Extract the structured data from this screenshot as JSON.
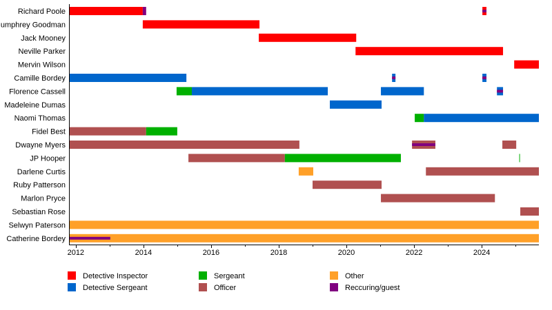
{
  "chart_data": {
    "type": "timeline",
    "title": "",
    "xlabel": "",
    "ylabel": "",
    "xlim": [
      2011.82,
      2025.69
    ],
    "x_ticks": [
      2012,
      2013,
      2014,
      2015,
      2016,
      2017,
      2018,
      2019,
      2020,
      2021,
      2022,
      2023,
      2024,
      2025
    ],
    "x_tick_labels": [
      "2012",
      "2014",
      "2016",
      "2018",
      "2020",
      "2022",
      "2024"
    ],
    "legend_placement": "bottom",
    "roles": {
      "di": {
        "label": "Detective Inspector",
        "color": "#ff0000"
      },
      "ds": {
        "label": "Detective Sergeant",
        "color": "#0066cc"
      },
      "sgt": {
        "label": "Sergeant",
        "color": "#00b000"
      },
      "officer": {
        "label": "Officer",
        "color": "#b05050"
      },
      "other": {
        "label": "Other",
        "color": "#ffa028"
      },
      "guest": {
        "label": "Reccuring/guest",
        "color": "#800080"
      }
    },
    "legend_order": [
      "di",
      "ds",
      "sgt",
      "officer",
      "other",
      "guest"
    ],
    "rows": [
      {
        "name": "Richard Poole",
        "segments": [
          [
            2011.82,
            2013.98,
            "di"
          ],
          [
            2013.98,
            2014.08,
            "guest"
          ],
          [
            2024.02,
            2024.14,
            "di"
          ],
          [
            2024.02,
            2024.14,
            "guest",
            "overlay"
          ]
        ]
      },
      {
        "name": "Humphrey Goodman",
        "segments": [
          [
            2013.98,
            2017.43,
            "di"
          ]
        ]
      },
      {
        "name": "Jack Mooney",
        "segments": [
          [
            2017.41,
            2020.29,
            "di"
          ]
        ]
      },
      {
        "name": "Neville Parker",
        "segments": [
          [
            2020.27,
            2024.63,
            "di"
          ]
        ]
      },
      {
        "name": "Mervin Wilson",
        "segments": [
          [
            2024.96,
            2025.69,
            "di"
          ]
        ]
      },
      {
        "name": "Camille Bordey",
        "segments": [
          [
            2011.82,
            2015.27,
            "ds"
          ],
          [
            2021.35,
            2021.45,
            "ds"
          ],
          [
            2021.35,
            2021.45,
            "guest",
            "overlay"
          ],
          [
            2024.02,
            2024.14,
            "ds"
          ],
          [
            2024.02,
            2024.14,
            "guest",
            "overlay"
          ]
        ]
      },
      {
        "name": "Florence Cassell",
        "segments": [
          [
            2014.98,
            2015.43,
            "sgt"
          ],
          [
            2015.43,
            2019.45,
            "ds"
          ],
          [
            2021.02,
            2022.29,
            "ds"
          ],
          [
            2024.45,
            2024.63,
            "ds"
          ],
          [
            2024.45,
            2024.63,
            "guest",
            "overlay"
          ]
        ]
      },
      {
        "name": "Madeleine Dumas",
        "segments": [
          [
            2019.51,
            2021.04,
            "ds"
          ]
        ]
      },
      {
        "name": "Naomi Thomas",
        "segments": [
          [
            2022.02,
            2022.29,
            "sgt"
          ],
          [
            2022.29,
            2025.69,
            "ds"
          ]
        ]
      },
      {
        "name": "Fidel Best",
        "segments": [
          [
            2011.82,
            2014.08,
            "officer"
          ],
          [
            2014.08,
            2015.0,
            "sgt"
          ]
        ]
      },
      {
        "name": "Dwayne Myers",
        "segments": [
          [
            2011.82,
            2018.61,
            "officer"
          ],
          [
            2021.94,
            2022.63,
            "officer"
          ],
          [
            2021.94,
            2022.63,
            "guest",
            "overlay"
          ],
          [
            2024.61,
            2025.02,
            "officer"
          ]
        ]
      },
      {
        "name": "JP Hooper",
        "segments": [
          [
            2015.33,
            2018.18,
            "officer"
          ],
          [
            2018.18,
            2021.61,
            "sgt"
          ],
          [
            2025.11,
            2025.13,
            "sgt"
          ]
        ]
      },
      {
        "name": "Darlene Curtis",
        "segments": [
          [
            2018.59,
            2019.02,
            "other"
          ],
          [
            2022.35,
            2025.69,
            "officer"
          ]
        ]
      },
      {
        "name": "Ruby Patterson",
        "segments": [
          [
            2019.0,
            2021.04,
            "officer"
          ]
        ]
      },
      {
        "name": "Marlon Pryce",
        "segments": [
          [
            2021.02,
            2024.39,
            "officer"
          ]
        ]
      },
      {
        "name": "Sebastian Rose",
        "segments": [
          [
            2025.14,
            2025.69,
            "officer"
          ]
        ]
      },
      {
        "name": "Selwyn Paterson",
        "segments": [
          [
            2011.82,
            2025.69,
            "other"
          ]
        ]
      },
      {
        "name": "Catherine Bordey",
        "segments": [
          [
            2011.82,
            2025.69,
            "other"
          ],
          [
            2011.82,
            2013.02,
            "guest",
            "overlay"
          ]
        ]
      }
    ]
  }
}
